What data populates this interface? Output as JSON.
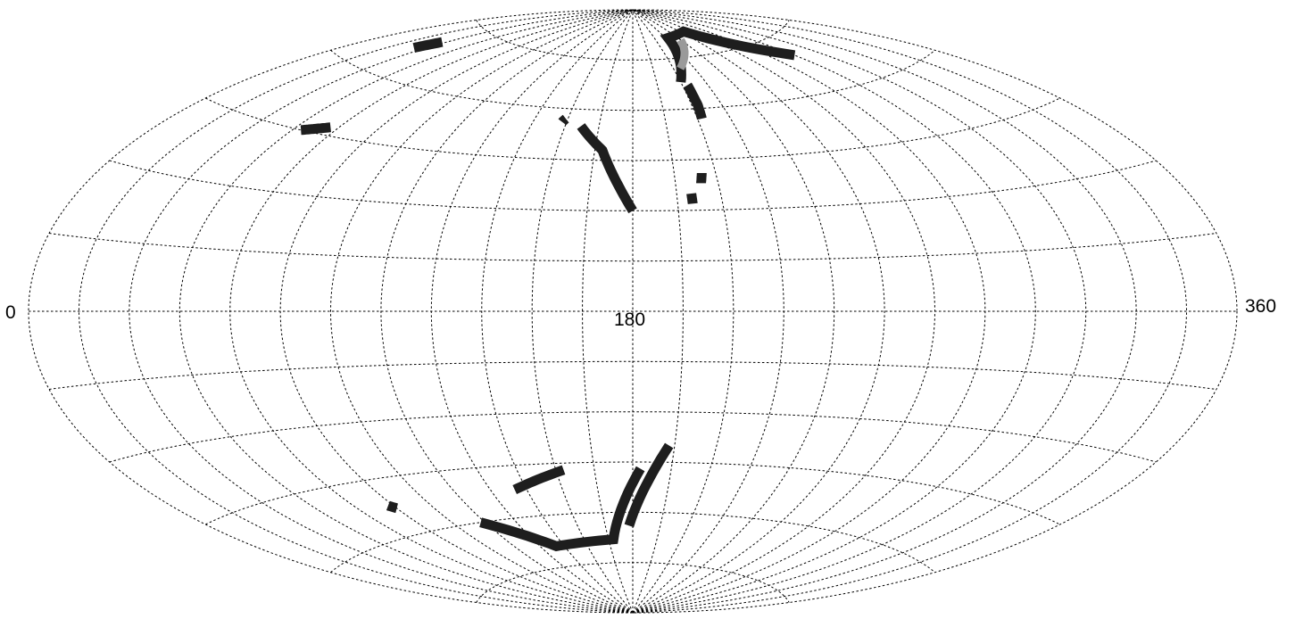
{
  "chart_data": {
    "type": "scatter",
    "projection": "aitoff",
    "title": "",
    "xlabel": "",
    "ylabel": "",
    "xlim": [
      0,
      360
    ],
    "ylim": [
      -90,
      90
    ],
    "grid": true,
    "grid_style": "dotted",
    "meridian_step_deg": 15,
    "parallel_step_deg": 15,
    "tick_labels": [
      "0",
      "180",
      "360"
    ],
    "colors": {
      "points": "#1e1e1e",
      "points_light": "#9a9a9a",
      "grid": "#000000"
    },
    "series": [
      {
        "regions": [
          {
            "shade": "dark",
            "points": [
              [
                25,
                67
              ],
              [
                28,
                70
              ]
            ]
          },
          {
            "shade": "dark",
            "points": [
              [
                48,
                45
              ],
              [
                57,
                47
              ]
            ]
          },
          {
            "shade": "dark",
            "points": [
              [
                148,
                56
              ],
              [
                149,
                57
              ]
            ]
          },
          {
            "shade": "dark",
            "points": [
              [
                157,
                55
              ],
              [
                168,
                48
              ],
              [
                180,
                30
              ]
            ]
          },
          {
            "shade": "dark",
            "points": [
              [
                210,
                68
              ],
              [
                228,
                81
              ],
              [
                260,
                82
              ],
              [
                300,
                70
              ]
            ]
          },
          {
            "shade": "light",
            "points": [
              [
                215,
                72
              ],
              [
                240,
                80
              ]
            ]
          },
          {
            "shade": "dark",
            "points": [
              [
                213,
                67
              ],
              [
                213,
                61
              ],
              [
                212,
                57
              ]
            ]
          },
          {
            "shade": "dark",
            "points": [
              [
                205,
                41
              ],
              [
                204,
                38
              ]
            ]
          },
          {
            "shade": "dark",
            "points": [
              [
                200,
                35
              ],
              [
                200,
                32
              ]
            ]
          },
          {
            "shade": "dark",
            "points": [
              [
                73,
                -52
              ],
              [
                75,
                -53
              ]
            ]
          },
          {
            "shade": "dark",
            "points": [
              [
                103,
                -60
              ],
              [
                130,
                -69
              ],
              [
                168,
                -68
              ],
              [
                183,
                -47
              ]
            ]
          },
          {
            "shade": "dark",
            "points": [
              [
                130,
                -52
              ],
              [
                153,
                -47
              ]
            ]
          },
          {
            "shade": "dark",
            "points": [
              [
                178,
                -64
              ],
              [
                193,
                -40
              ]
            ]
          }
        ]
      }
    ]
  }
}
